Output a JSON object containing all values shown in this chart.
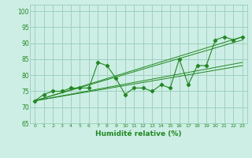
{
  "title": "",
  "xlabel": "Humidité relative (%)",
  "ylabel": "",
  "bg_color": "#cceee4",
  "grid_color": "#99ccbb",
  "line_color": "#228822",
  "xlim": [
    -0.5,
    23.5
  ],
  "ylim": [
    65,
    102
  ],
  "yticks": [
    65,
    70,
    75,
    80,
    85,
    90,
    95,
    100
  ],
  "xticks": [
    0,
    1,
    2,
    3,
    4,
    5,
    6,
    7,
    8,
    9,
    10,
    11,
    12,
    13,
    14,
    15,
    16,
    17,
    18,
    19,
    20,
    21,
    22,
    23
  ],
  "main_data": [
    72,
    74,
    75,
    75,
    76,
    76,
    76,
    84,
    83,
    79,
    74,
    76,
    76,
    75,
    77,
    76,
    85,
    77,
    83,
    83,
    91,
    92,
    91,
    92
  ],
  "linear_lines": [
    {
      "x": [
        0,
        23
      ],
      "y": [
        72,
        92
      ]
    },
    {
      "x": [
        0,
        23
      ],
      "y": [
        72,
        91
      ]
    },
    {
      "x": [
        0,
        23
      ],
      "y": [
        72,
        84
      ]
    },
    {
      "x": [
        0,
        23
      ],
      "y": [
        72,
        83
      ]
    }
  ]
}
